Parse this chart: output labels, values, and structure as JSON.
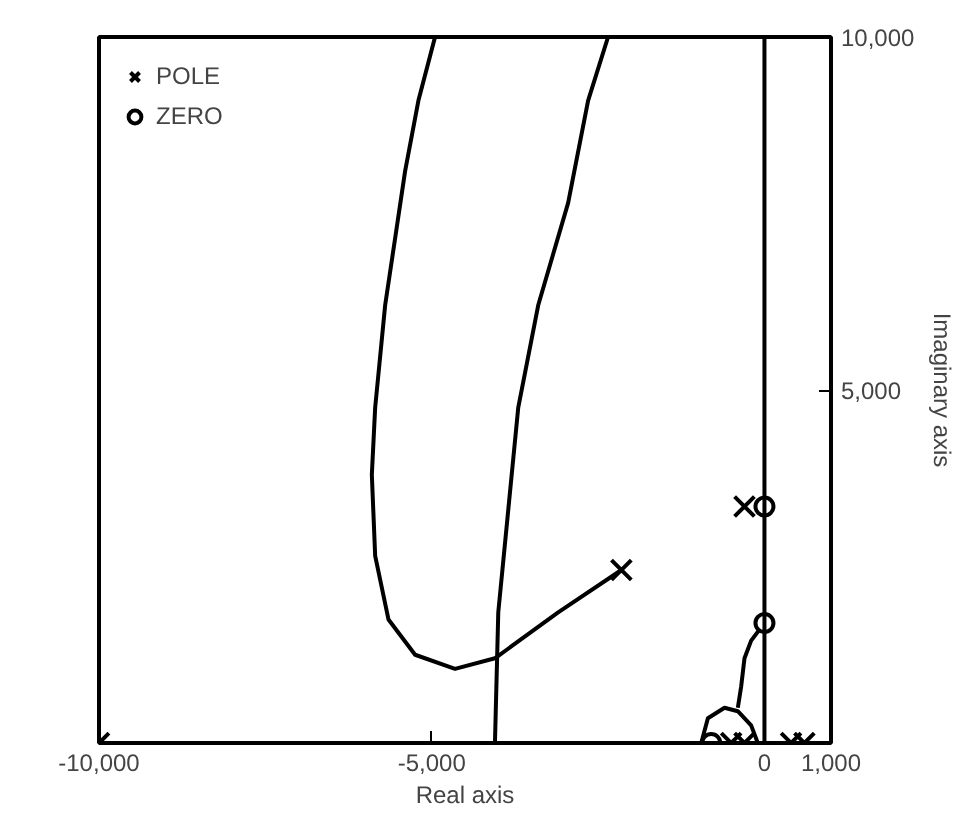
{
  "chart_data": {
    "type": "line",
    "xlabel": "Real axis",
    "ylabel": "Imaginary axis",
    "xlim": [
      -10000,
      1000
    ],
    "ylim": [
      0,
      10000
    ],
    "xticks": [
      {
        "value": -10000,
        "label": "-10,000"
      },
      {
        "value": -5000,
        "label": "-5,000"
      },
      0,
      {
        "value": 1000,
        "label": "1,000"
      }
    ],
    "yticks": [
      {
        "value": 5000,
        "label": "5,000"
      },
      {
        "value": 10000,
        "label": "10,000"
      }
    ],
    "grid": false,
    "ref_lines": [
      {
        "axis": "x",
        "value": 0,
        "color": "#000000",
        "line_style": "solid"
      }
    ],
    "legend": "top left",
    "line_style": "solid",
    "series": [
      {
        "color": "#000000",
        "x": [
          -2150,
          -3100,
          -4050,
          -4650,
          -5250,
          -5650,
          -5850,
          -5900,
          -5850,
          -5700,
          -5550,
          -5400,
          -5200,
          -4950
        ],
        "values": [
          2450,
          1850,
          1200,
          1050,
          1250,
          1750,
          2650,
          3800,
          4750,
          6200,
          7150,
          8100,
          9100,
          10000
        ]
      },
      {
        "color": "#000000",
        "x": [
          -4050,
          -4000,
          -3850,
          -3700,
          -3400,
          -2950,
          -2650,
          -2350
        ],
        "values": [
          0,
          1850,
          3300,
          4750,
          6200,
          7650,
          9100,
          10000
        ]
      },
      {
        "color": "#000000",
        "x": [
          -950,
          -850,
          -600,
          -400,
          -200,
          -100
        ],
        "values": [
          0,
          350,
          500,
          450,
          250,
          0
        ]
      },
      {
        "color": "#000000",
        "x": [
          -400,
          -350,
          -300,
          -200,
          0
        ],
        "values": [
          500,
          800,
          1200,
          1450,
          1700
        ]
      },
      {
        "type": "scatter",
        "name": "POLE",
        "marker": "cross",
        "color": "#000000",
        "x": [
          -10000,
          -2150,
          -300,
          -500,
          -300,
          400,
          600
        ],
        "values": [
          0,
          2450,
          3350,
          0,
          0,
          0,
          0
        ]
      },
      {
        "type": "scatter",
        "name": "ZERO",
        "marker": "circle",
        "color": "#000000",
        "x": [
          0,
          0,
          -800
        ],
        "values": [
          3350,
          1700,
          0
        ]
      }
    ]
  }
}
